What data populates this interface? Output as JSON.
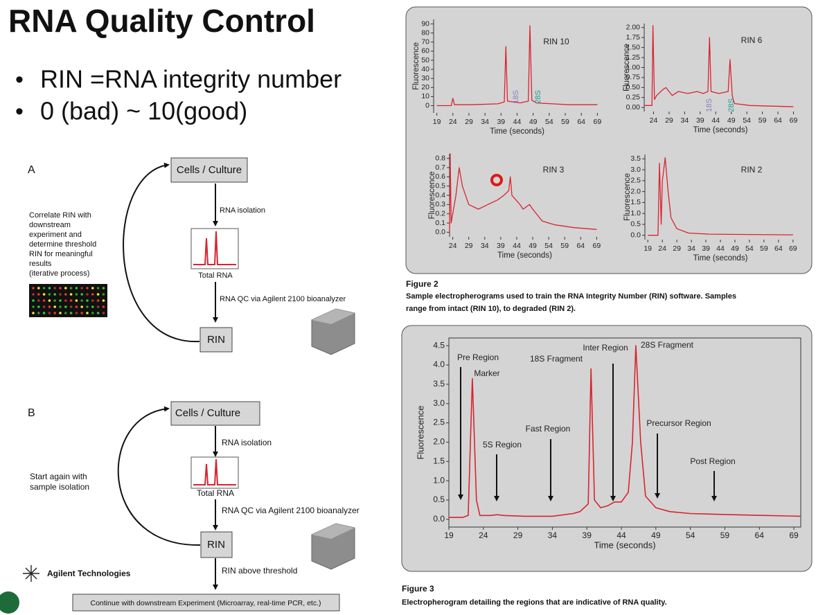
{
  "title": "RNA Quality Control",
  "bullets": [
    "RIN =RNA integrity number",
    "0 (bad) ~ 10(good)"
  ],
  "diagram_a": {
    "label": "A",
    "start": "Cells / Culture",
    "step1": "RNA isolation",
    "sample": "Total RNA",
    "step2": "RNA QC via Agilent 2100 bioanalyzer",
    "end": "RIN",
    "note": [
      "Correlate RIN with",
      "downstream",
      "experiment and",
      "determine threshold",
      "RIN for meaningful",
      "results",
      "(iterative process)"
    ]
  },
  "diagram_b": {
    "label": "B",
    "start": "Cells / Culture",
    "step1": "RNA isolation",
    "sample": "Total RNA",
    "step2": "RNA QC via Agilent 2100 bioanalyzer",
    "end": "RIN",
    "step3": "RIN above threshold",
    "final": "Continue with downstream Experiment (Microarray, real-time PCR, etc.)",
    "note": [
      "Start again with",
      "sample isolation"
    ]
  },
  "logo": "Agilent Technologies",
  "figure2": {
    "label": "Figure 2",
    "caption": [
      "Sample electropherograms used to train the RNA Integrity Number (RIN) software.  Samples",
      "range from intact (RIN 10), to degraded (RIN 2)."
    ],
    "charts": [
      {
        "type": "line",
        "title": "RIN 10",
        "xlabel": "Time (seconds)",
        "ylabel": "Fluorescence",
        "color": "#d9232e",
        "xlim": [
          18,
          70
        ],
        "ylim": [
          -8,
          95
        ],
        "xticks": [
          19,
          24,
          29,
          34,
          39,
          44,
          49,
          54,
          59,
          64,
          69
        ],
        "yticks": [
          0,
          10,
          20,
          30,
          40,
          50,
          60,
          70,
          80,
          90
        ],
        "x": [
          19,
          23.5,
          24,
          24.5,
          30,
          38,
          40,
          40.5,
          41,
          45,
          47.5,
          48,
          48.6,
          50,
          55,
          60,
          69
        ],
        "values": [
          0,
          0,
          8,
          1,
          1,
          2,
          4,
          65,
          5,
          3,
          5,
          88,
          6,
          3,
          2,
          1,
          1
        ],
        "annotations": [
          "18S",
          "28S"
        ]
      },
      {
        "type": "line",
        "title": "RIN 6",
        "xlabel": "Time (seconds)",
        "ylabel": "Fluorescence",
        "color": "#d9232e",
        "xlim": [
          21,
          70
        ],
        "ylim": [
          -0.1,
          2.1
        ],
        "xticks": [
          24,
          29,
          34,
          39,
          44,
          49,
          54,
          59,
          64,
          69
        ],
        "yticks": [
          {
            "value": 0,
            "label": "0.00"
          },
          0.25,
          {
            "value": 0.5,
            "label": "0.50"
          },
          0.75,
          {
            "value": 1,
            "label": "1.00"
          },
          1.25,
          {
            "value": 1.5,
            "label": "1.50"
          },
          1.75,
          {
            "value": 2,
            "label": "2.00"
          }
        ],
        "x": [
          21,
          23.5,
          23.8,
          24.3,
          25,
          27,
          28,
          30,
          32,
          35,
          38,
          40,
          41.5,
          42,
          42.5,
          45,
          48,
          48.6,
          49.3,
          50,
          55,
          69
        ],
        "values": [
          0.05,
          0.05,
          2.05,
          0.2,
          0.3,
          0.45,
          0.5,
          0.3,
          0.4,
          0.35,
          0.4,
          0.35,
          0.4,
          1.75,
          0.4,
          0.35,
          0.4,
          1.2,
          0.3,
          0.1,
          0.05,
          0.02
        ],
        "annotations": [
          "18S",
          "28S"
        ]
      },
      {
        "type": "line",
        "title": "RIN 3",
        "xlabel": "Time (seconds)",
        "ylabel": "Fluorescence",
        "color": "#d9232e",
        "xlim": [
          23,
          70
        ],
        "ylim": [
          -0.05,
          0.85
        ],
        "xticks": [
          24,
          29,
          34,
          39,
          44,
          49,
          54,
          59,
          64,
          69
        ],
        "yticks": [
          {
            "value": 0,
            "label": "0.0"
          },
          0.1,
          0.2,
          0.3,
          0.4,
          0.5,
          0.6,
          0.7,
          0.8
        ],
        "x": [
          23,
          23.2,
          23.5,
          24,
          25,
          26,
          27,
          29,
          32,
          35,
          38,
          40,
          41.5,
          42,
          42.5,
          45,
          46,
          48,
          49,
          52,
          56,
          62,
          69
        ],
        "values": [
          0,
          0.85,
          0.1,
          0.2,
          0.4,
          0.7,
          0.5,
          0.3,
          0.25,
          0.3,
          0.35,
          0.4,
          0.45,
          0.6,
          0.4,
          0.3,
          0.25,
          0.3,
          0.25,
          0.12,
          0.08,
          0.05,
          0.03
        ]
      },
      {
        "type": "line",
        "title": "RIN 2",
        "xlabel": "Time (seconds)",
        "ylabel": "Fluorescence",
        "color": "#d9232e",
        "xlim": [
          18,
          70
        ],
        "ylim": [
          -0.2,
          3.7
        ],
        "xticks": [
          19,
          24,
          29,
          34,
          39,
          44,
          49,
          54,
          59,
          64,
          69
        ],
        "yticks": [
          {
            "value": 0,
            "label": "0.0"
          },
          0.5,
          {
            "value": 1,
            "label": "1.0"
          },
          1.5,
          {
            "value": 2,
            "label": "2.0"
          },
          2.5,
          {
            "value": 3,
            "label": "3.0"
          },
          3.5
        ],
        "x": [
          19,
          22.5,
          23,
          23.6,
          24,
          25,
          26,
          27,
          29,
          33,
          40,
          69
        ],
        "values": [
          0,
          0,
          3.3,
          0.5,
          2.5,
          3.55,
          2,
          0.8,
          0.3,
          0.1,
          0.05,
          0.02
        ]
      }
    ]
  },
  "figure3": {
    "label": "Figure 3",
    "caption": "Electropherogram detailing the regions that are indicative of RNA quality.",
    "chart": {
      "type": "line",
      "xlabel": "Time (seconds)",
      "ylabel": "Fluorescence",
      "color": "#d9232e",
      "xlim": [
        19,
        70
      ],
      "ylim": [
        -0.2,
        4.7
      ],
      "xticks": [
        19,
        24,
        29,
        34,
        39,
        44,
        49,
        54,
        59,
        64,
        69
      ],
      "yticks": [
        {
          "value": 0,
          "label": "0.0"
        },
        0.5,
        {
          "value": 1,
          "label": "1.0"
        },
        1.5,
        {
          "value": 2,
          "label": "2.0"
        },
        2.5,
        {
          "value": 3,
          "label": "3.0"
        },
        3.5,
        {
          "value": 4,
          "label": "4.0"
        },
        4.5
      ],
      "x": [
        19,
        21,
        21.8,
        22.4,
        23,
        23.5,
        25,
        26,
        27,
        30,
        34,
        37,
        38,
        39.2,
        39.6,
        40.1,
        41,
        42,
        43,
        44,
        45,
        45.6,
        46.1,
        46.8,
        47.5,
        49,
        51,
        54,
        60,
        65,
        70
      ],
      "values": [
        0.05,
        0.05,
        0.1,
        3.65,
        0.5,
        0.1,
        0.1,
        0.12,
        0.1,
        0.08,
        0.08,
        0.15,
        0.2,
        0.4,
        3.9,
        0.5,
        0.3,
        0.35,
        0.45,
        0.45,
        0.7,
        2.0,
        4.5,
        2.0,
        0.6,
        0.3,
        0.2,
        0.15,
        0.12,
        0.1,
        0.08
      ],
      "annotations": [
        "Pre Region",
        "Marker",
        "18S Fragment",
        "Inter Region",
        "28S Fragment",
        "5S Region",
        "Fast Region",
        "Precursor Region",
        "Post Region"
      ]
    }
  }
}
